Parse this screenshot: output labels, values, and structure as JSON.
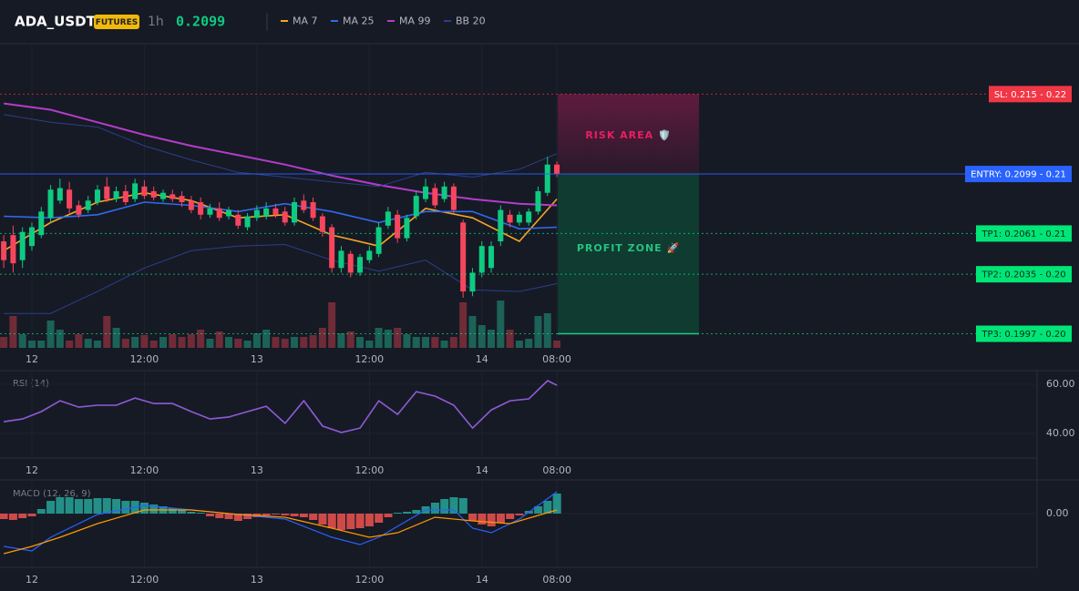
{
  "header": {
    "symbol": "ADA_USDT",
    "badge": "FUTURES",
    "interval": "1h",
    "price": 0.2099
  },
  "chart_data": [
    {
      "type": "candlestick",
      "x": [
        -3,
        -2,
        -1,
        0,
        1,
        2,
        3,
        4,
        5,
        6,
        7,
        8,
        9,
        10,
        11,
        12,
        13,
        14,
        15,
        16,
        17,
        18,
        19,
        20,
        21,
        22,
        23,
        24,
        25,
        26,
        27,
        28,
        29,
        30,
        31,
        32,
        33,
        34,
        35,
        36,
        37,
        38,
        39,
        40,
        41,
        42,
        43,
        44,
        45,
        46,
        47,
        48,
        49,
        50,
        51,
        52,
        53,
        54,
        55,
        56
      ],
      "open": [
        0.2056,
        0.206,
        0.2044,
        0.2053,
        0.206,
        0.2071,
        0.2082,
        0.2089,
        0.2079,
        0.2076,
        0.2081,
        0.2091,
        0.2083,
        0.2088,
        0.2083,
        0.2091,
        0.2088,
        0.2083,
        0.2086,
        0.2085,
        0.2082,
        0.2081,
        0.2073,
        0.2077,
        0.2072,
        0.2073,
        0.2065,
        0.2071,
        0.2072,
        0.2077,
        0.2075,
        0.2068,
        0.2082,
        0.2081,
        0.2072,
        0.2065,
        0.2039,
        0.2048,
        0.2036,
        0.2044,
        0.2048,
        0.2066,
        0.2073,
        0.2058,
        0.2072,
        0.2083,
        0.209,
        0.2083,
        0.2091,
        0.2068,
        0.2024,
        0.2036,
        0.2039,
        0.2056,
        0.2073,
        0.2068,
        0.2068,
        0.2075,
        0.2087,
        0.2105
      ],
      "close": [
        0.2044,
        0.2042,
        0.2062,
        0.2065,
        0.2075,
        0.2089,
        0.209,
        0.2077,
        0.2073,
        0.2082,
        0.2089,
        0.2083,
        0.2088,
        0.2081,
        0.2093,
        0.2085,
        0.2084,
        0.2087,
        0.2083,
        0.2081,
        0.2076,
        0.2073,
        0.2077,
        0.2071,
        0.2076,
        0.2066,
        0.2072,
        0.2076,
        0.2077,
        0.2073,
        0.2068,
        0.2081,
        0.2076,
        0.2071,
        0.2062,
        0.2039,
        0.205,
        0.2036,
        0.2046,
        0.205,
        0.2065,
        0.2075,
        0.2058,
        0.2071,
        0.2085,
        0.2091,
        0.2079,
        0.2091,
        0.2076,
        0.2024,
        0.2036,
        0.2053,
        0.2053,
        0.2076,
        0.2068,
        0.2073,
        0.2075,
        0.2088,
        0.2105,
        0.2099
      ],
      "high": [
        0.206,
        0.2066,
        0.2065,
        0.2068,
        0.2078,
        0.2092,
        0.2096,
        0.2094,
        0.2082,
        0.2085,
        0.2092,
        0.2097,
        0.2091,
        0.2092,
        0.2096,
        0.2095,
        0.2091,
        0.2089,
        0.2089,
        0.2088,
        0.2085,
        0.2084,
        0.208,
        0.2081,
        0.2078,
        0.2076,
        0.2074,
        0.2079,
        0.2081,
        0.208,
        0.2078,
        0.2084,
        0.2086,
        0.2084,
        0.2074,
        0.2067,
        0.2053,
        0.205,
        0.2048,
        0.2053,
        0.2068,
        0.2078,
        0.2076,
        0.2073,
        0.2088,
        0.2096,
        0.2093,
        0.2094,
        0.2093,
        0.207,
        0.2039,
        0.2056,
        0.2056,
        0.2079,
        0.2076,
        0.2075,
        0.2077,
        0.2091,
        0.211,
        0.2107
      ],
      "low": [
        0.2039,
        0.2036,
        0.2039,
        0.205,
        0.2058,
        0.2068,
        0.208,
        0.2074,
        0.2071,
        0.2074,
        0.2079,
        0.2081,
        0.2081,
        0.2079,
        0.2081,
        0.2083,
        0.2082,
        0.2081,
        0.2081,
        0.2078,
        0.2074,
        0.207,
        0.2071,
        0.2069,
        0.207,
        0.2064,
        0.2063,
        0.2069,
        0.207,
        0.2071,
        0.2066,
        0.2066,
        0.2074,
        0.2069,
        0.2059,
        0.2036,
        0.2036,
        0.2033,
        0.2034,
        0.2042,
        0.2046,
        0.2064,
        0.2055,
        0.2056,
        0.207,
        0.2081,
        0.2077,
        0.2081,
        0.2074,
        0.202,
        0.2021,
        0.2033,
        0.2036,
        0.2053,
        0.2065,
        0.2066,
        0.2066,
        0.2073,
        0.2085,
        0.2097
      ],
      "volume": [
        12,
        35,
        15,
        8,
        8,
        30,
        20,
        8,
        15,
        10,
        8,
        35,
        22,
        10,
        12,
        14,
        8,
        12,
        15,
        12,
        15,
        20,
        10,
        18,
        12,
        10,
        8,
        16,
        20,
        12,
        10,
        12,
        12,
        14,
        22,
        50,
        16,
        18,
        12,
        8,
        22,
        20,
        22,
        15,
        12,
        12,
        12,
        8,
        12,
        50,
        35,
        25,
        20,
        52,
        20,
        8,
        10,
        35,
        38,
        8
      ],
      "volume_lim": [
        0,
        100
      ],
      "up_color": "#0ecb81",
      "down_color": "#f6465d",
      "xlim": [
        -3.4,
        111.7
      ],
      "ylim": [
        0.1988,
        0.2181
      ],
      "xticks": [
        {
          "value": 0,
          "label": "12"
        },
        {
          "value": 12,
          "label": "12:00"
        },
        {
          "value": 24,
          "label": "13"
        },
        {
          "value": 36,
          "label": "12:00"
        },
        {
          "value": 48,
          "label": "14"
        },
        {
          "value": 56,
          "label": "08:00"
        }
      ],
      "overlays": [
        {
          "name": "MA 7",
          "color": "#f5a623",
          "x": [
            -3,
            2,
            7,
            12,
            17,
            22,
            27,
            32,
            37,
            42,
            47,
            52,
            56
          ],
          "values": [
            0.205,
            0.2068,
            0.2081,
            0.2087,
            0.2082,
            0.2071,
            0.2073,
            0.206,
            0.2053,
            0.2077,
            0.2071,
            0.2056,
            0.2083
          ]
        },
        {
          "name": "MA 25",
          "color": "#2f6bef",
          "x": [
            -3,
            2,
            7,
            12,
            17,
            22,
            27,
            32,
            37,
            42,
            47,
            52,
            56
          ],
          "values": [
            0.2072,
            0.2071,
            0.2073,
            0.2081,
            0.2079,
            0.2075,
            0.208,
            0.2075,
            0.2068,
            0.2075,
            0.2075,
            0.2064,
            0.2065
          ]
        },
        {
          "name": "MA 99",
          "color": "#b43cc8",
          "x": [
            -3,
            2,
            7,
            12,
            17,
            22,
            27,
            32,
            37,
            42,
            47,
            52,
            56
          ],
          "values": [
            0.2144,
            0.214,
            0.2132,
            0.2124,
            0.2117,
            0.2111,
            0.2105,
            0.2098,
            0.2092,
            0.2087,
            0.2083,
            0.208,
            0.2079
          ]
        },
        {
          "name": "BB 20",
          "color": "#2b3f8a",
          "x": [
            -3,
            2,
            7,
            12,
            17,
            22,
            27,
            32,
            37,
            42,
            47,
            52,
            56
          ],
          "upper": [
            0.2137,
            0.2132,
            0.2129,
            0.2117,
            0.2108,
            0.21,
            0.2097,
            0.2094,
            0.2091,
            0.21,
            0.2097,
            0.2102,
            0.2112
          ],
          "lower": [
            0.201,
            0.201,
            0.2024,
            0.2039,
            0.205,
            0.2053,
            0.2054,
            0.2044,
            0.2037,
            0.2044,
            0.2025,
            0.2024,
            0.2029
          ]
        }
      ],
      "levels": [
        {
          "label": "SL: 0.215 - 0.22",
          "value": 0.215,
          "color": "#f23645"
        },
        {
          "label": "ENTRY: 0.2099 - 0.21",
          "value": 0.2099,
          "color": "#2962ff"
        },
        {
          "label": "TP1: 0.2061 - 0.21",
          "value": 0.2061,
          "color": "#00e676"
        },
        {
          "label": "TP2: 0.2035 - 0.20",
          "value": 0.2035,
          "color": "#00e676"
        },
        {
          "label": "TP3: 0.1997 - 0.20",
          "value": 0.1997,
          "color": "#00e676"
        }
      ],
      "zones": [
        {
          "label": "RISK AREA 🛡️",
          "color": "#e91e63"
        },
        {
          "label": "PROFIT ZONE 🚀",
          "color": "#26c281"
        }
      ]
    },
    {
      "type": "line",
      "title": "RSI (14)",
      "color": "#8e5bd6",
      "x": [
        -3,
        -1,
        1,
        3,
        5,
        7,
        9,
        11,
        13,
        15,
        17,
        19,
        21,
        23,
        25,
        27,
        29,
        31,
        33,
        35,
        37,
        39,
        41,
        43,
        45,
        47,
        49,
        51,
        53,
        55,
        56
      ],
      "values": [
        44.8,
        45.9,
        48.9,
        53.3,
        50.7,
        51.5,
        51.5,
        54.4,
        52.2,
        52.2,
        48.9,
        45.9,
        46.7,
        48.9,
        51.1,
        44.1,
        53.3,
        43.0,
        40.4,
        42.2,
        53.3,
        47.8,
        57.0,
        55.2,
        51.5,
        42.2,
        49.6,
        53.3,
        54.1,
        61.5,
        59.6
      ],
      "xlim": [
        -3.4,
        107.2
      ],
      "ylim": [
        30,
        65.2
      ],
      "yticks": [
        {
          "value": 60,
          "label": "60.00"
        },
        {
          "value": 40,
          "label": "40.00"
        }
      ],
      "xticks": [
        {
          "value": 0,
          "label": "12"
        },
        {
          "value": 12,
          "label": "12:00"
        },
        {
          "value": 24,
          "label": "13"
        },
        {
          "value": 36,
          "label": "12:00"
        },
        {
          "value": 48,
          "label": "14"
        },
        {
          "value": 56,
          "label": "08:00"
        }
      ]
    },
    {
      "type": "macd",
      "title": "MACD (12, 26, 9)",
      "x": [
        -3,
        -2,
        -1,
        0,
        1,
        2,
        3,
        4,
        5,
        6,
        7,
        8,
        9,
        10,
        11,
        12,
        13,
        14,
        15,
        16,
        17,
        18,
        19,
        20,
        21,
        22,
        23,
        24,
        25,
        26,
        27,
        28,
        29,
        30,
        31,
        32,
        33,
        34,
        35,
        36,
        37,
        38,
        39,
        40,
        41,
        42,
        43,
        44,
        45,
        46,
        47,
        48,
        49,
        50,
        51,
        52,
        53,
        54,
        55,
        56
      ],
      "values": [
        -0.00012,
        -0.00014,
        -0.0001,
        -6e-05,
        0.0001,
        0.00028,
        0.00036,
        0.00036,
        0.00032,
        0.00032,
        0.00034,
        0.00034,
        0.00032,
        0.00028,
        0.00028,
        0.00024,
        0.0002,
        0.00016,
        0.00012,
        8e-05,
        4e-05,
        2e-05,
        -6e-05,
        -0.0001,
        -0.00012,
        -0.00016,
        -0.00012,
        -8e-05,
        -4e-05,
        -2e-05,
        -4e-05,
        -6e-05,
        -8e-05,
        -0.00014,
        -0.00024,
        -0.00032,
        -0.00036,
        -0.00034,
        -0.00032,
        -0.00028,
        -0.0002,
        -8e-05,
        2e-05,
        4e-05,
        8e-05,
        0.00016,
        0.00024,
        0.00032,
        0.00036,
        0.00034,
        -0.00016,
        -0.00024,
        -0.00028,
        -0.0002,
        -0.00012,
        -4e-05,
        6e-05,
        0.00016,
        0.00028,
        0.00044
      ],
      "up_color": "#26a69a",
      "down_color": "#ef5350",
      "lines": [
        {
          "color": "#2962ff",
          "x": [
            -3,
            0,
            2,
            7,
            12,
            17,
            22,
            27,
            32,
            35,
            37,
            42,
            45,
            47,
            49,
            52,
            56
          ],
          "values": [
            -0.00072,
            -0.00082,
            -0.00052,
            -2e-05,
            0.00018,
            8e-05,
            -2e-05,
            -0.00012,
            -0.00052,
            -0.00068,
            -0.00052,
            8e-05,
            8e-05,
            -0.00032,
            -0.00042,
            -0.00012,
            0.00048
          ]
        },
        {
          "color": "#ff9800",
          "x": [
            -3,
            0,
            3,
            7,
            12,
            17,
            22,
            27,
            32,
            36,
            39,
            43,
            47,
            51,
            56
          ],
          "values": [
            -0.00088,
            -0.00072,
            -0.00052,
            -0.00022,
            8e-05,
            8e-05,
            -2e-05,
            -8e-05,
            -0.00032,
            -0.00052,
            -0.00042,
            -8e-05,
            -0.00016,
            -0.00022,
            8e-05
          ]
        }
      ],
      "xlim": [
        -3.4,
        107.2
      ],
      "ylim": [
        -0.00118,
        0.00072
      ],
      "yticks": [
        {
          "value": 0,
          "label": "0.00"
        }
      ],
      "xticks": [
        {
          "value": 0,
          "label": "12"
        },
        {
          "value": 12,
          "label": "12:00"
        },
        {
          "value": 24,
          "label": "13"
        },
        {
          "value": 36,
          "label": "12:00"
        },
        {
          "value": 48,
          "label": "14"
        },
        {
          "value": 56,
          "label": "08:00"
        }
      ]
    }
  ]
}
